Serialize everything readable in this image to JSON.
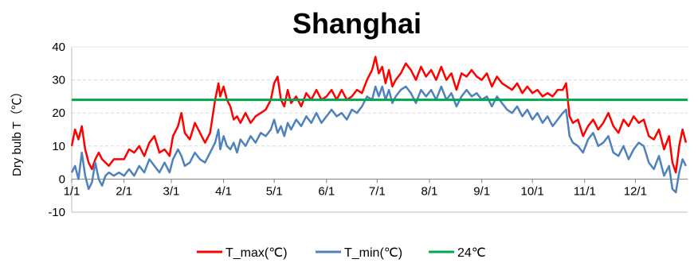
{
  "chart_data": {
    "type": "line",
    "title": "Shanghai",
    "xlabel": "",
    "ylabel": "Dry bulb T（℃）",
    "ylim": [
      -10,
      40
    ],
    "yticks": [
      "-10",
      "0",
      "10",
      "20",
      "30",
      "40"
    ],
    "xticks": [
      {
        "day": 0,
        "label": "1/1"
      },
      {
        "day": 31,
        "label": "2/1"
      },
      {
        "day": 59,
        "label": "3/1"
      },
      {
        "day": 90,
        "label": "4/1"
      },
      {
        "day": 120,
        "label": "5/1"
      },
      {
        "day": 151,
        "label": "6/1"
      },
      {
        "day": 181,
        "label": "7/1"
      },
      {
        "day": 212,
        "label": "8/1"
      },
      {
        "day": 243,
        "label": "9/1"
      },
      {
        "day": 273,
        "label": "10/1"
      },
      {
        "day": 304,
        "label": "11/1"
      },
      {
        "day": 334,
        "label": "12/1"
      }
    ],
    "xlim": [
      0,
      365
    ],
    "grid": "horizontal-dashed",
    "legend_position": "bottom",
    "series": [
      {
        "name": "T_max(℃)",
        "color": "#ff0000",
        "points": [
          [
            0,
            10
          ],
          [
            2,
            15
          ],
          [
            4,
            12
          ],
          [
            6,
            16
          ],
          [
            8,
            9
          ],
          [
            10,
            5
          ],
          [
            12,
            3
          ],
          [
            14,
            6
          ],
          [
            16,
            8
          ],
          [
            18,
            6
          ],
          [
            20,
            5
          ],
          [
            22,
            4
          ],
          [
            25,
            6
          ],
          [
            28,
            6
          ],
          [
            31,
            6
          ],
          [
            34,
            9
          ],
          [
            37,
            8
          ],
          [
            40,
            10
          ],
          [
            43,
            7
          ],
          [
            46,
            11
          ],
          [
            49,
            13
          ],
          [
            52,
            8
          ],
          [
            55,
            9
          ],
          [
            58,
            7
          ],
          [
            60,
            13
          ],
          [
            63,
            16
          ],
          [
            65,
            20
          ],
          [
            67,
            14
          ],
          [
            70,
            12
          ],
          [
            73,
            17
          ],
          [
            76,
            14
          ],
          [
            79,
            11
          ],
          [
            82,
            14
          ],
          [
            85,
            24
          ],
          [
            87,
            29
          ],
          [
            88,
            25
          ],
          [
            90,
            28
          ],
          [
            92,
            24
          ],
          [
            94,
            22
          ],
          [
            96,
            18
          ],
          [
            98,
            19
          ],
          [
            100,
            17
          ],
          [
            103,
            20
          ],
          [
            106,
            17
          ],
          [
            109,
            19
          ],
          [
            112,
            20
          ],
          [
            115,
            21
          ],
          [
            118,
            24
          ],
          [
            120,
            29
          ],
          [
            122,
            31
          ],
          [
            124,
            24
          ],
          [
            126,
            22
          ],
          [
            128,
            27
          ],
          [
            130,
            23
          ],
          [
            133,
            25
          ],
          [
            136,
            22
          ],
          [
            139,
            26
          ],
          [
            142,
            24
          ],
          [
            145,
            27
          ],
          [
            148,
            24
          ],
          [
            151,
            25
          ],
          [
            154,
            27
          ],
          [
            157,
            24
          ],
          [
            160,
            27
          ],
          [
            163,
            24
          ],
          [
            166,
            25
          ],
          [
            169,
            27
          ],
          [
            172,
            26
          ],
          [
            175,
            30
          ],
          [
            178,
            33
          ],
          [
            180,
            37
          ],
          [
            182,
            32
          ],
          [
            184,
            34
          ],
          [
            186,
            29
          ],
          [
            188,
            33
          ],
          [
            190,
            28
          ],
          [
            192,
            30
          ],
          [
            195,
            32
          ],
          [
            198,
            35
          ],
          [
            201,
            33
          ],
          [
            204,
            30
          ],
          [
            207,
            34
          ],
          [
            210,
            31
          ],
          [
            213,
            33
          ],
          [
            216,
            30
          ],
          [
            219,
            34
          ],
          [
            222,
            30
          ],
          [
            225,
            32
          ],
          [
            228,
            27
          ],
          [
            231,
            32
          ],
          [
            234,
            31
          ],
          [
            237,
            33
          ],
          [
            240,
            31
          ],
          [
            243,
            30
          ],
          [
            246,
            32
          ],
          [
            249,
            28
          ],
          [
            252,
            31
          ],
          [
            255,
            29
          ],
          [
            258,
            28
          ],
          [
            261,
            27
          ],
          [
            264,
            29
          ],
          [
            267,
            26
          ],
          [
            270,
            28
          ],
          [
            273,
            26
          ],
          [
            276,
            27
          ],
          [
            279,
            25
          ],
          [
            282,
            26
          ],
          [
            285,
            25
          ],
          [
            288,
            27
          ],
          [
            291,
            27
          ],
          [
            293,
            29
          ],
          [
            295,
            19
          ],
          [
            297,
            17
          ],
          [
            300,
            18
          ],
          [
            303,
            13
          ],
          [
            306,
            16
          ],
          [
            309,
            18
          ],
          [
            312,
            15
          ],
          [
            315,
            17
          ],
          [
            318,
            20
          ],
          [
            321,
            16
          ],
          [
            324,
            14
          ],
          [
            327,
            18
          ],
          [
            330,
            16
          ],
          [
            333,
            19
          ],
          [
            336,
            17
          ],
          [
            339,
            18
          ],
          [
            342,
            13
          ],
          [
            345,
            12
          ],
          [
            348,
            15
          ],
          [
            351,
            9
          ],
          [
            354,
            13
          ],
          [
            356,
            5
          ],
          [
            358,
            2
          ],
          [
            360,
            10
          ],
          [
            362,
            15
          ],
          [
            364,
            11
          ]
        ]
      },
      {
        "name": "T_min(℃)",
        "color": "#4f81bd",
        "points": [
          [
            0,
            2
          ],
          [
            2,
            4
          ],
          [
            4,
            0
          ],
          [
            6,
            8
          ],
          [
            8,
            1
          ],
          [
            10,
            -3
          ],
          [
            12,
            -1
          ],
          [
            14,
            5
          ],
          [
            16,
            0
          ],
          [
            18,
            -2
          ],
          [
            20,
            1
          ],
          [
            22,
            2
          ],
          [
            25,
            1
          ],
          [
            28,
            2
          ],
          [
            31,
            1
          ],
          [
            34,
            3
          ],
          [
            37,
            1
          ],
          [
            40,
            4
          ],
          [
            43,
            2
          ],
          [
            46,
            6
          ],
          [
            49,
            4
          ],
          [
            52,
            2
          ],
          [
            55,
            5
          ],
          [
            58,
            2
          ],
          [
            60,
            6
          ],
          [
            63,
            9
          ],
          [
            65,
            7
          ],
          [
            67,
            4
          ],
          [
            70,
            5
          ],
          [
            73,
            8
          ],
          [
            76,
            6
          ],
          [
            79,
            5
          ],
          [
            82,
            8
          ],
          [
            85,
            11
          ],
          [
            87,
            15
          ],
          [
            88,
            9
          ],
          [
            90,
            13
          ],
          [
            92,
            10
          ],
          [
            94,
            9
          ],
          [
            96,
            11
          ],
          [
            98,
            8
          ],
          [
            100,
            12
          ],
          [
            103,
            10
          ],
          [
            106,
            13
          ],
          [
            109,
            11
          ],
          [
            112,
            14
          ],
          [
            115,
            13
          ],
          [
            118,
            15
          ],
          [
            120,
            18
          ],
          [
            122,
            14
          ],
          [
            124,
            16
          ],
          [
            126,
            13
          ],
          [
            128,
            17
          ],
          [
            130,
            15
          ],
          [
            133,
            18
          ],
          [
            136,
            16
          ],
          [
            139,
            19
          ],
          [
            142,
            17
          ],
          [
            145,
            20
          ],
          [
            148,
            17
          ],
          [
            151,
            19
          ],
          [
            154,
            21
          ],
          [
            157,
            19
          ],
          [
            160,
            20
          ],
          [
            163,
            18
          ],
          [
            166,
            21
          ],
          [
            169,
            20
          ],
          [
            172,
            22
          ],
          [
            175,
            25
          ],
          [
            178,
            24
          ],
          [
            180,
            28
          ],
          [
            182,
            25
          ],
          [
            184,
            28
          ],
          [
            186,
            24
          ],
          [
            188,
            27
          ],
          [
            190,
            23
          ],
          [
            192,
            25
          ],
          [
            195,
            27
          ],
          [
            198,
            28
          ],
          [
            201,
            26
          ],
          [
            204,
            23
          ],
          [
            207,
            27
          ],
          [
            210,
            25
          ],
          [
            213,
            27
          ],
          [
            216,
            24
          ],
          [
            219,
            28
          ],
          [
            222,
            24
          ],
          [
            225,
            26
          ],
          [
            228,
            22
          ],
          [
            231,
            25
          ],
          [
            234,
            27
          ],
          [
            237,
            25
          ],
          [
            240,
            26
          ],
          [
            243,
            24
          ],
          [
            246,
            25
          ],
          [
            249,
            22
          ],
          [
            252,
            25
          ],
          [
            255,
            23
          ],
          [
            258,
            21
          ],
          [
            261,
            20
          ],
          [
            264,
            22
          ],
          [
            267,
            19
          ],
          [
            270,
            21
          ],
          [
            273,
            18
          ],
          [
            276,
            20
          ],
          [
            279,
            17
          ],
          [
            282,
            19
          ],
          [
            285,
            16
          ],
          [
            288,
            18
          ],
          [
            291,
            20
          ],
          [
            293,
            21
          ],
          [
            295,
            13
          ],
          [
            297,
            11
          ],
          [
            300,
            10
          ],
          [
            303,
            8
          ],
          [
            306,
            12
          ],
          [
            309,
            14
          ],
          [
            312,
            10
          ],
          [
            315,
            11
          ],
          [
            318,
            13
          ],
          [
            321,
            8
          ],
          [
            324,
            7
          ],
          [
            327,
            10
          ],
          [
            330,
            6
          ],
          [
            333,
            9
          ],
          [
            336,
            11
          ],
          [
            339,
            10
          ],
          [
            342,
            5
          ],
          [
            345,
            3
          ],
          [
            348,
            7
          ],
          [
            351,
            1
          ],
          [
            354,
            4
          ],
          [
            356,
            -3
          ],
          [
            358,
            -4
          ],
          [
            360,
            2
          ],
          [
            362,
            6
          ],
          [
            364,
            4
          ]
        ]
      },
      {
        "name": "24℃",
        "color": "#00a650",
        "points": [
          [
            0,
            24
          ],
          [
            365,
            24
          ]
        ]
      }
    ]
  }
}
